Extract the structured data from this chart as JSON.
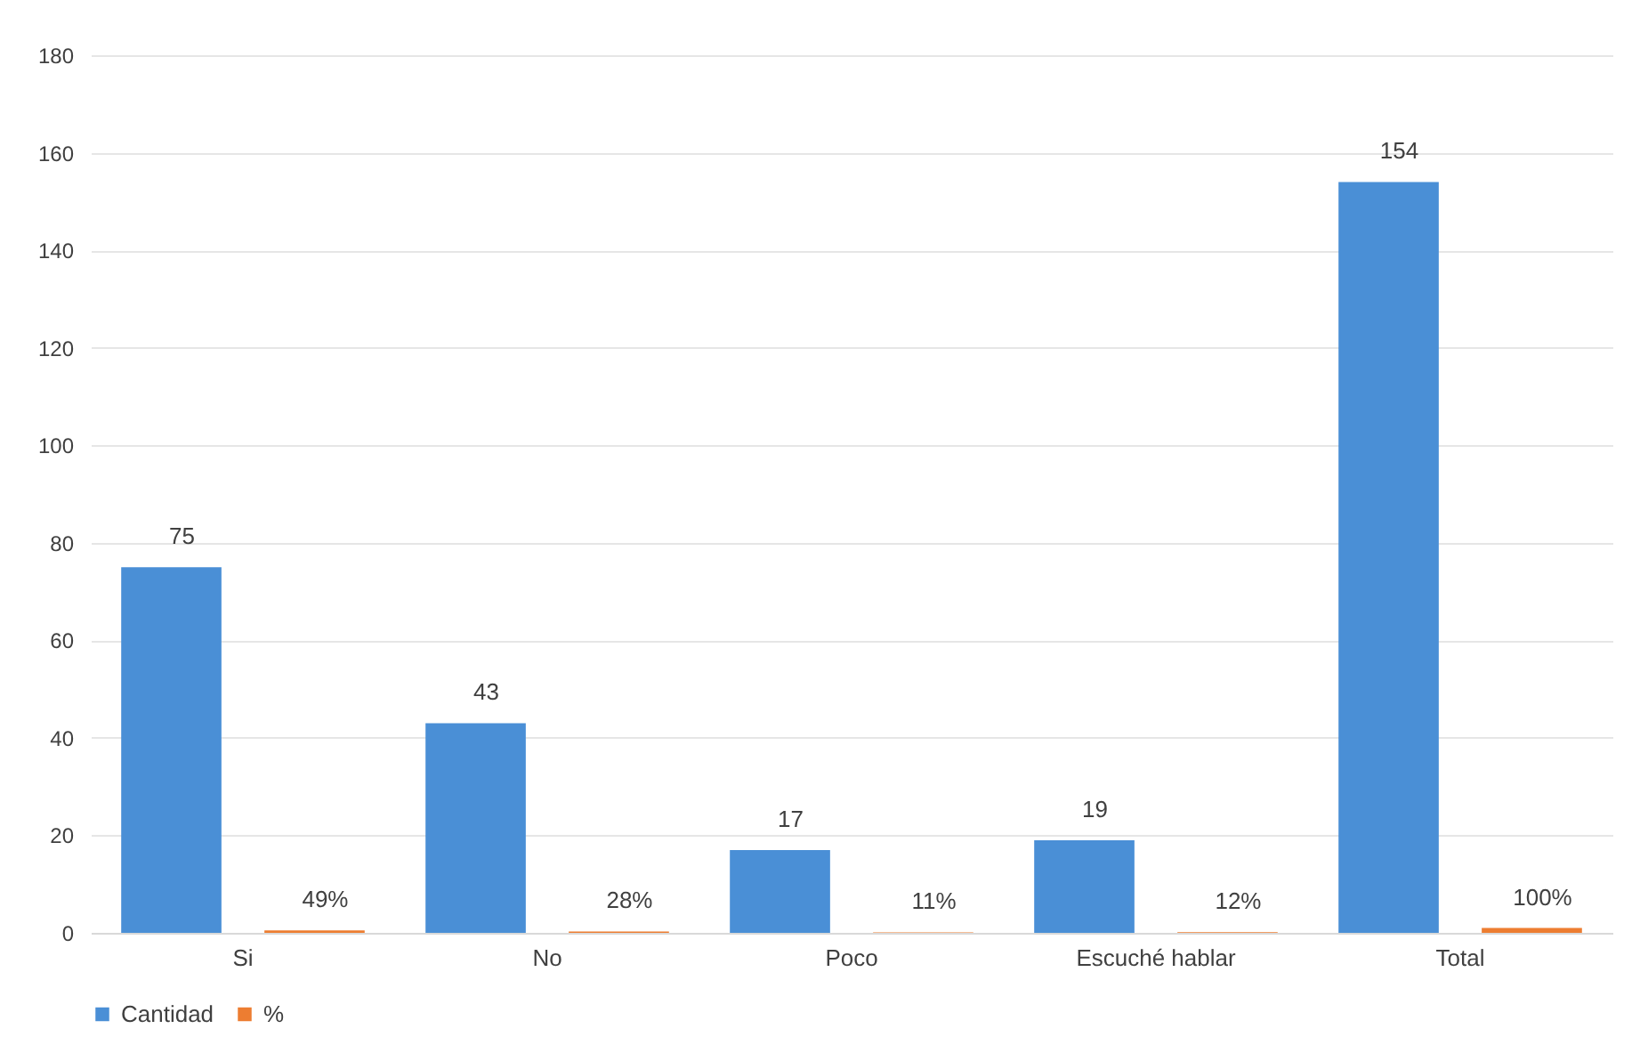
{
  "chart_data": {
    "type": "bar",
    "categories": [
      "Si",
      "No",
      "Poco",
      "Escuché hablar",
      "Total"
    ],
    "series": [
      {
        "name": "Cantidad",
        "color": "#4a8fd6",
        "values": [
          75,
          43,
          17,
          19,
          154
        ],
        "value_labels": [
          "75",
          "43",
          "17",
          "19",
          "154"
        ]
      },
      {
        "name": "%",
        "color": "#ed7d31",
        "values": [
          0.49,
          0.28,
          0.11,
          0.12,
          1.0
        ],
        "value_labels": [
          "49%",
          "28%",
          "11%",
          "12%",
          "100%"
        ]
      }
    ],
    "ylim": [
      0,
      180
    ],
    "yticks": [
      0,
      20,
      40,
      60,
      80,
      100,
      120,
      140,
      160,
      180
    ],
    "grid": "y",
    "legend": "bottom"
  }
}
